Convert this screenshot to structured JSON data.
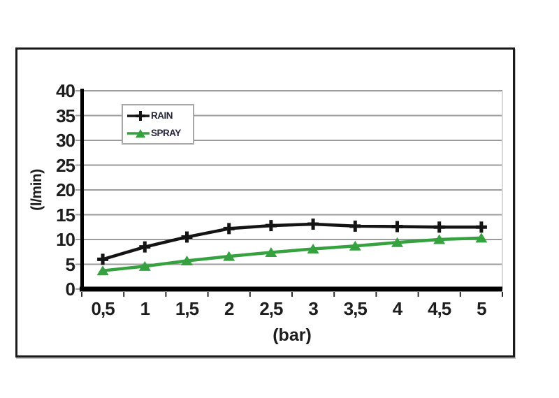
{
  "chart_data": {
    "type": "line",
    "title": "",
    "xlabel": "(bar)",
    "ylabel": "(l/min)",
    "x_values": [
      0.5,
      1,
      1.5,
      2,
      2.5,
      3,
      3.5,
      4,
      4.5,
      5
    ],
    "x_tick_labels": [
      "0,5",
      "1",
      "1,5",
      "2",
      "2,5",
      "3",
      "3,5",
      "4",
      "4,5",
      "5"
    ],
    "y_ticks": [
      0,
      5,
      10,
      15,
      20,
      25,
      30,
      35,
      40
    ],
    "y_tick_labels": [
      "0",
      "5",
      "10",
      "15",
      "20",
      "25",
      "30",
      "35",
      "40"
    ],
    "ylim": [
      0,
      40
    ],
    "grid": "horizontal-only",
    "legend_position": "inside-top-left",
    "series": [
      {
        "name": "RAIN",
        "marker": "plus",
        "color": "#141414",
        "values": [
          6,
          8.5,
          10.5,
          12.2,
          12.8,
          13.1,
          12.7,
          12.6,
          12.5,
          12.5
        ]
      },
      {
        "name": "SPRAY",
        "marker": "triangle",
        "color": "#35a13f",
        "values": [
          3.7,
          4.6,
          5.7,
          6.6,
          7.4,
          8.1,
          8.7,
          9.4,
          10,
          10.3
        ]
      }
    ]
  },
  "colors": {
    "background": "#ffffff",
    "frame_border": "#1a1a1a",
    "gridline": "#9b9b9b",
    "axis": "#000000",
    "plot_right_edge": "#d8d8d8",
    "tick": "#2b2b2b",
    "label_text": "#1d1d1d",
    "legend_border": "#a8a8a8",
    "legend_text": "#26263a"
  }
}
